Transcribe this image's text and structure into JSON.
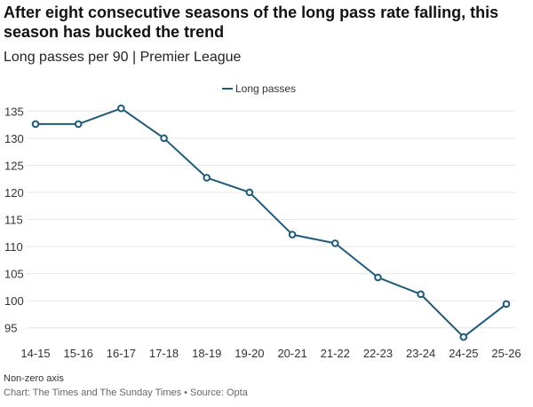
{
  "header": {
    "title": "After eight consecutive seasons of the long pass rate falling, this season has bucked the trend",
    "subtitle": "Long passes per 90 | Premier League"
  },
  "footer": {
    "note": "Non-zero axis",
    "credit_chart": "Chart: The Times and The Sunday Times",
    "separator": "•",
    "credit_source": "Source: Opta"
  },
  "colors": {
    "line": "#1f5a7a",
    "grid": "#e6e6e6",
    "text": "#333333"
  },
  "chart_data": {
    "type": "line",
    "title": "After eight consecutive seasons of the long pass rate falling, this season has bucked the trend",
    "subtitle": "Long passes per 90 | Premier League",
    "xlabel": "",
    "ylabel": "",
    "categories": [
      "14-15",
      "15-16",
      "16-17",
      "17-18",
      "18-19",
      "19-20",
      "20-21",
      "21-22",
      "22-23",
      "23-24",
      "24-25",
      "25-26"
    ],
    "series": [
      {
        "name": "Long passes",
        "values": [
          132.6,
          132.6,
          135.5,
          130.0,
          122.7,
          120.0,
          112.2,
          110.6,
          104.3,
          101.2,
          93.3,
          99.4
        ]
      }
    ],
    "yticks": [
      95,
      100,
      105,
      110,
      115,
      120,
      125,
      130,
      135
    ],
    "ylim": [
      92.5,
      137.5
    ],
    "grid": true,
    "legend": "top-center"
  }
}
